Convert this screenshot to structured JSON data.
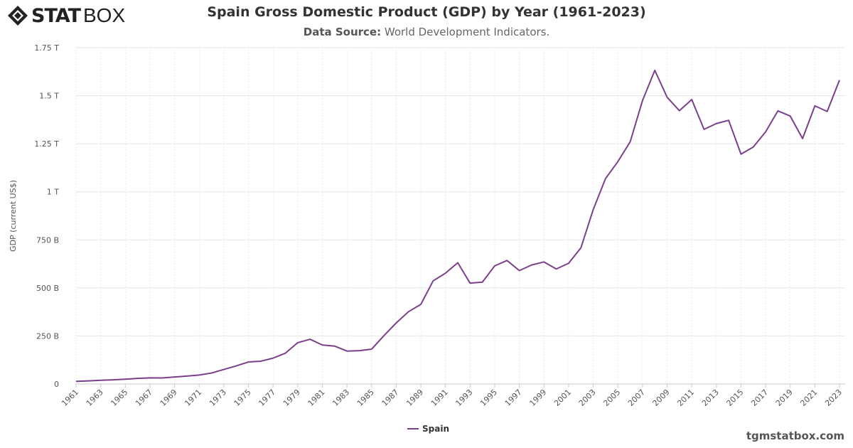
{
  "logo": {
    "text_bold": "STAT",
    "text_light": "BOX"
  },
  "header": {
    "title": "Spain Gross Domestic Product (GDP) by Year (1961-2023)",
    "subtitle_label": "Data Source:",
    "subtitle_value": "World Development Indicators."
  },
  "footer": {
    "site": "tgmstatbox.com"
  },
  "chart_data": {
    "type": "line",
    "title": "Spain Gross Domestic Product (GDP) by Year (1961-2023)",
    "ylabel": "GDP (current US$)",
    "xlabel": "",
    "ylim": [
      0,
      1750000000000
    ],
    "yticks": [
      0,
      250000000000,
      500000000000,
      750000000000,
      1000000000000,
      1250000000000,
      1500000000000,
      1750000000000
    ],
    "ytick_labels": [
      "0",
      "250 B",
      "500 B",
      "750 B",
      "1 T",
      "1.25 T",
      "1.5 T",
      "1.75 T"
    ],
    "xtick_labels": [
      "1961",
      "1963",
      "1965",
      "1967",
      "1969",
      "1971",
      "1973",
      "1975",
      "1977",
      "1979",
      "1981",
      "1983",
      "1985",
      "1987",
      "1989",
      "1991",
      "1993",
      "1995",
      "1997",
      "1999",
      "2001",
      "2003",
      "2005",
      "2007",
      "2009",
      "2011",
      "2013",
      "2015",
      "2017",
      "2019",
      "2021",
      "2023"
    ],
    "grid": true,
    "legend_position": "bottom",
    "color": "#7b3f8c",
    "x": [
      1961,
      1962,
      1963,
      1964,
      1965,
      1966,
      1967,
      1968,
      1969,
      1970,
      1971,
      1972,
      1973,
      1974,
      1975,
      1976,
      1977,
      1978,
      1979,
      1980,
      1981,
      1982,
      1983,
      1984,
      1985,
      1986,
      1987,
      1988,
      1989,
      1990,
      1991,
      1992,
      1993,
      1994,
      1995,
      1996,
      1997,
      1998,
      1999,
      2000,
      2001,
      2002,
      2003,
      2004,
      2005,
      2006,
      2007,
      2008,
      2009,
      2010,
      2011,
      2012,
      2013,
      2014,
      2015,
      2016,
      2017,
      2018,
      2019,
      2020,
      2021,
      2022,
      2023
    ],
    "series": [
      {
        "name": "Spain",
        "values_billion_usd": [
          13.8,
          16.1,
          19.4,
          21.9,
          25.0,
          29.0,
          32.1,
          31.6,
          36.4,
          41.3,
          46.6,
          57.1,
          75.7,
          94.2,
          114.5,
          118.6,
          134.6,
          160.3,
          214.9,
          232.8,
          203.0,
          197.1,
          171.2,
          173.4,
          181.2,
          251.2,
          317.7,
          376.2,
          414.3,
          536.6,
          576.8,
          630.9,
          524.7,
          530.1,
          614.6,
          642.6,
          590.1,
          619.2,
          635.1,
          598.4,
          628.1,
          708.5,
          907.5,
          1069,
          1157,
          1260,
          1474,
          1632,
          1492,
          1422,
          1480,
          1325,
          1355,
          1372,
          1196,
          1233,
          1312,
          1421,
          1394,
          1277,
          1447,
          1418,
          1581
        ]
      }
    ]
  }
}
